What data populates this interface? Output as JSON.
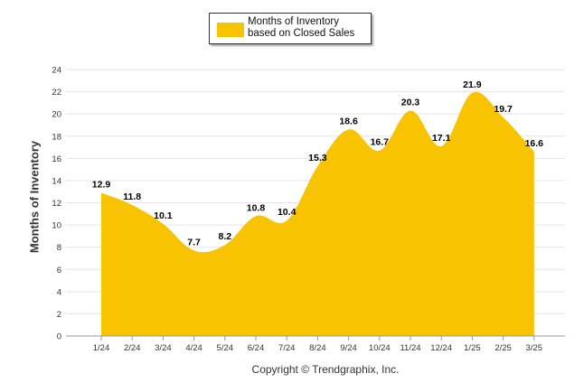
{
  "chart_data": {
    "type": "area",
    "categories": [
      "1/24",
      "2/24",
      "3/24",
      "4/24",
      "5/24",
      "6/24",
      "7/24",
      "8/24",
      "9/24",
      "10/24",
      "11/24",
      "12/24",
      "1/25",
      "2/25",
      "3/25"
    ],
    "series": [
      {
        "name": "Months of Inventory based on Closed Sales",
        "values": [
          12.9,
          11.8,
          10.1,
          7.7,
          8.2,
          10.8,
          10.4,
          15.3,
          18.6,
          16.7,
          20.3,
          17.1,
          21.9,
          19.7,
          16.6
        ],
        "color": "#F8C300"
      }
    ],
    "ylabel": "Months of Inventory",
    "ylim": [
      0,
      24
    ],
    "yticks": [
      0,
      2,
      4,
      6,
      8,
      10,
      12,
      14,
      16,
      18,
      20,
      22,
      24
    ],
    "data_labels": true,
    "grid": true,
    "legend_position": "top-center"
  },
  "footer": {
    "copyright": "Copyright © Trendgraphix, Inc."
  }
}
